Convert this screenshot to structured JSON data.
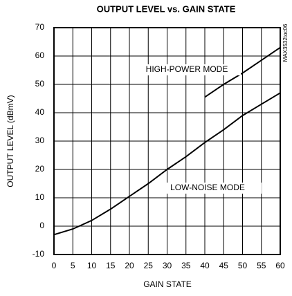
{
  "chart_data": {
    "type": "line",
    "title": "OUTPUT LEVEL vs. GAIN STATE",
    "x_label": "GAIN STATE",
    "y_label": "OUTPUT LEVEL (dBmV)",
    "side_label": "MAX3532toc06",
    "annotations": [
      "HIGH-POWER MODE",
      "LOW-NOISE MODE"
    ],
    "series": [
      {
        "name": "LOW-NOISE MODE",
        "color": "#000000",
        "x": [
          0,
          5,
          10,
          15,
          20,
          25,
          30,
          35,
          40,
          45,
          50,
          55,
          60
        ],
        "values": [
          -3,
          -1,
          2,
          6,
          10.5,
          15,
          20,
          24.5,
          29.5,
          34,
          39,
          43,
          47
        ]
      },
      {
        "name": "HIGH-POWER MODE",
        "color": "#000000",
        "x": [
          40,
          45,
          50,
          55,
          60
        ],
        "values": [
          45.5,
          50,
          54,
          58.5,
          63
        ]
      }
    ],
    "xlim": [
      0,
      60
    ],
    "xticks": [
      0,
      5,
      10,
      15,
      20,
      25,
      30,
      35,
      40,
      45,
      50,
      55,
      60
    ],
    "ylim": [
      -10,
      70
    ],
    "yticks": [
      -10,
      0,
      10,
      20,
      30,
      40,
      50,
      60,
      70
    ],
    "grid": true
  }
}
